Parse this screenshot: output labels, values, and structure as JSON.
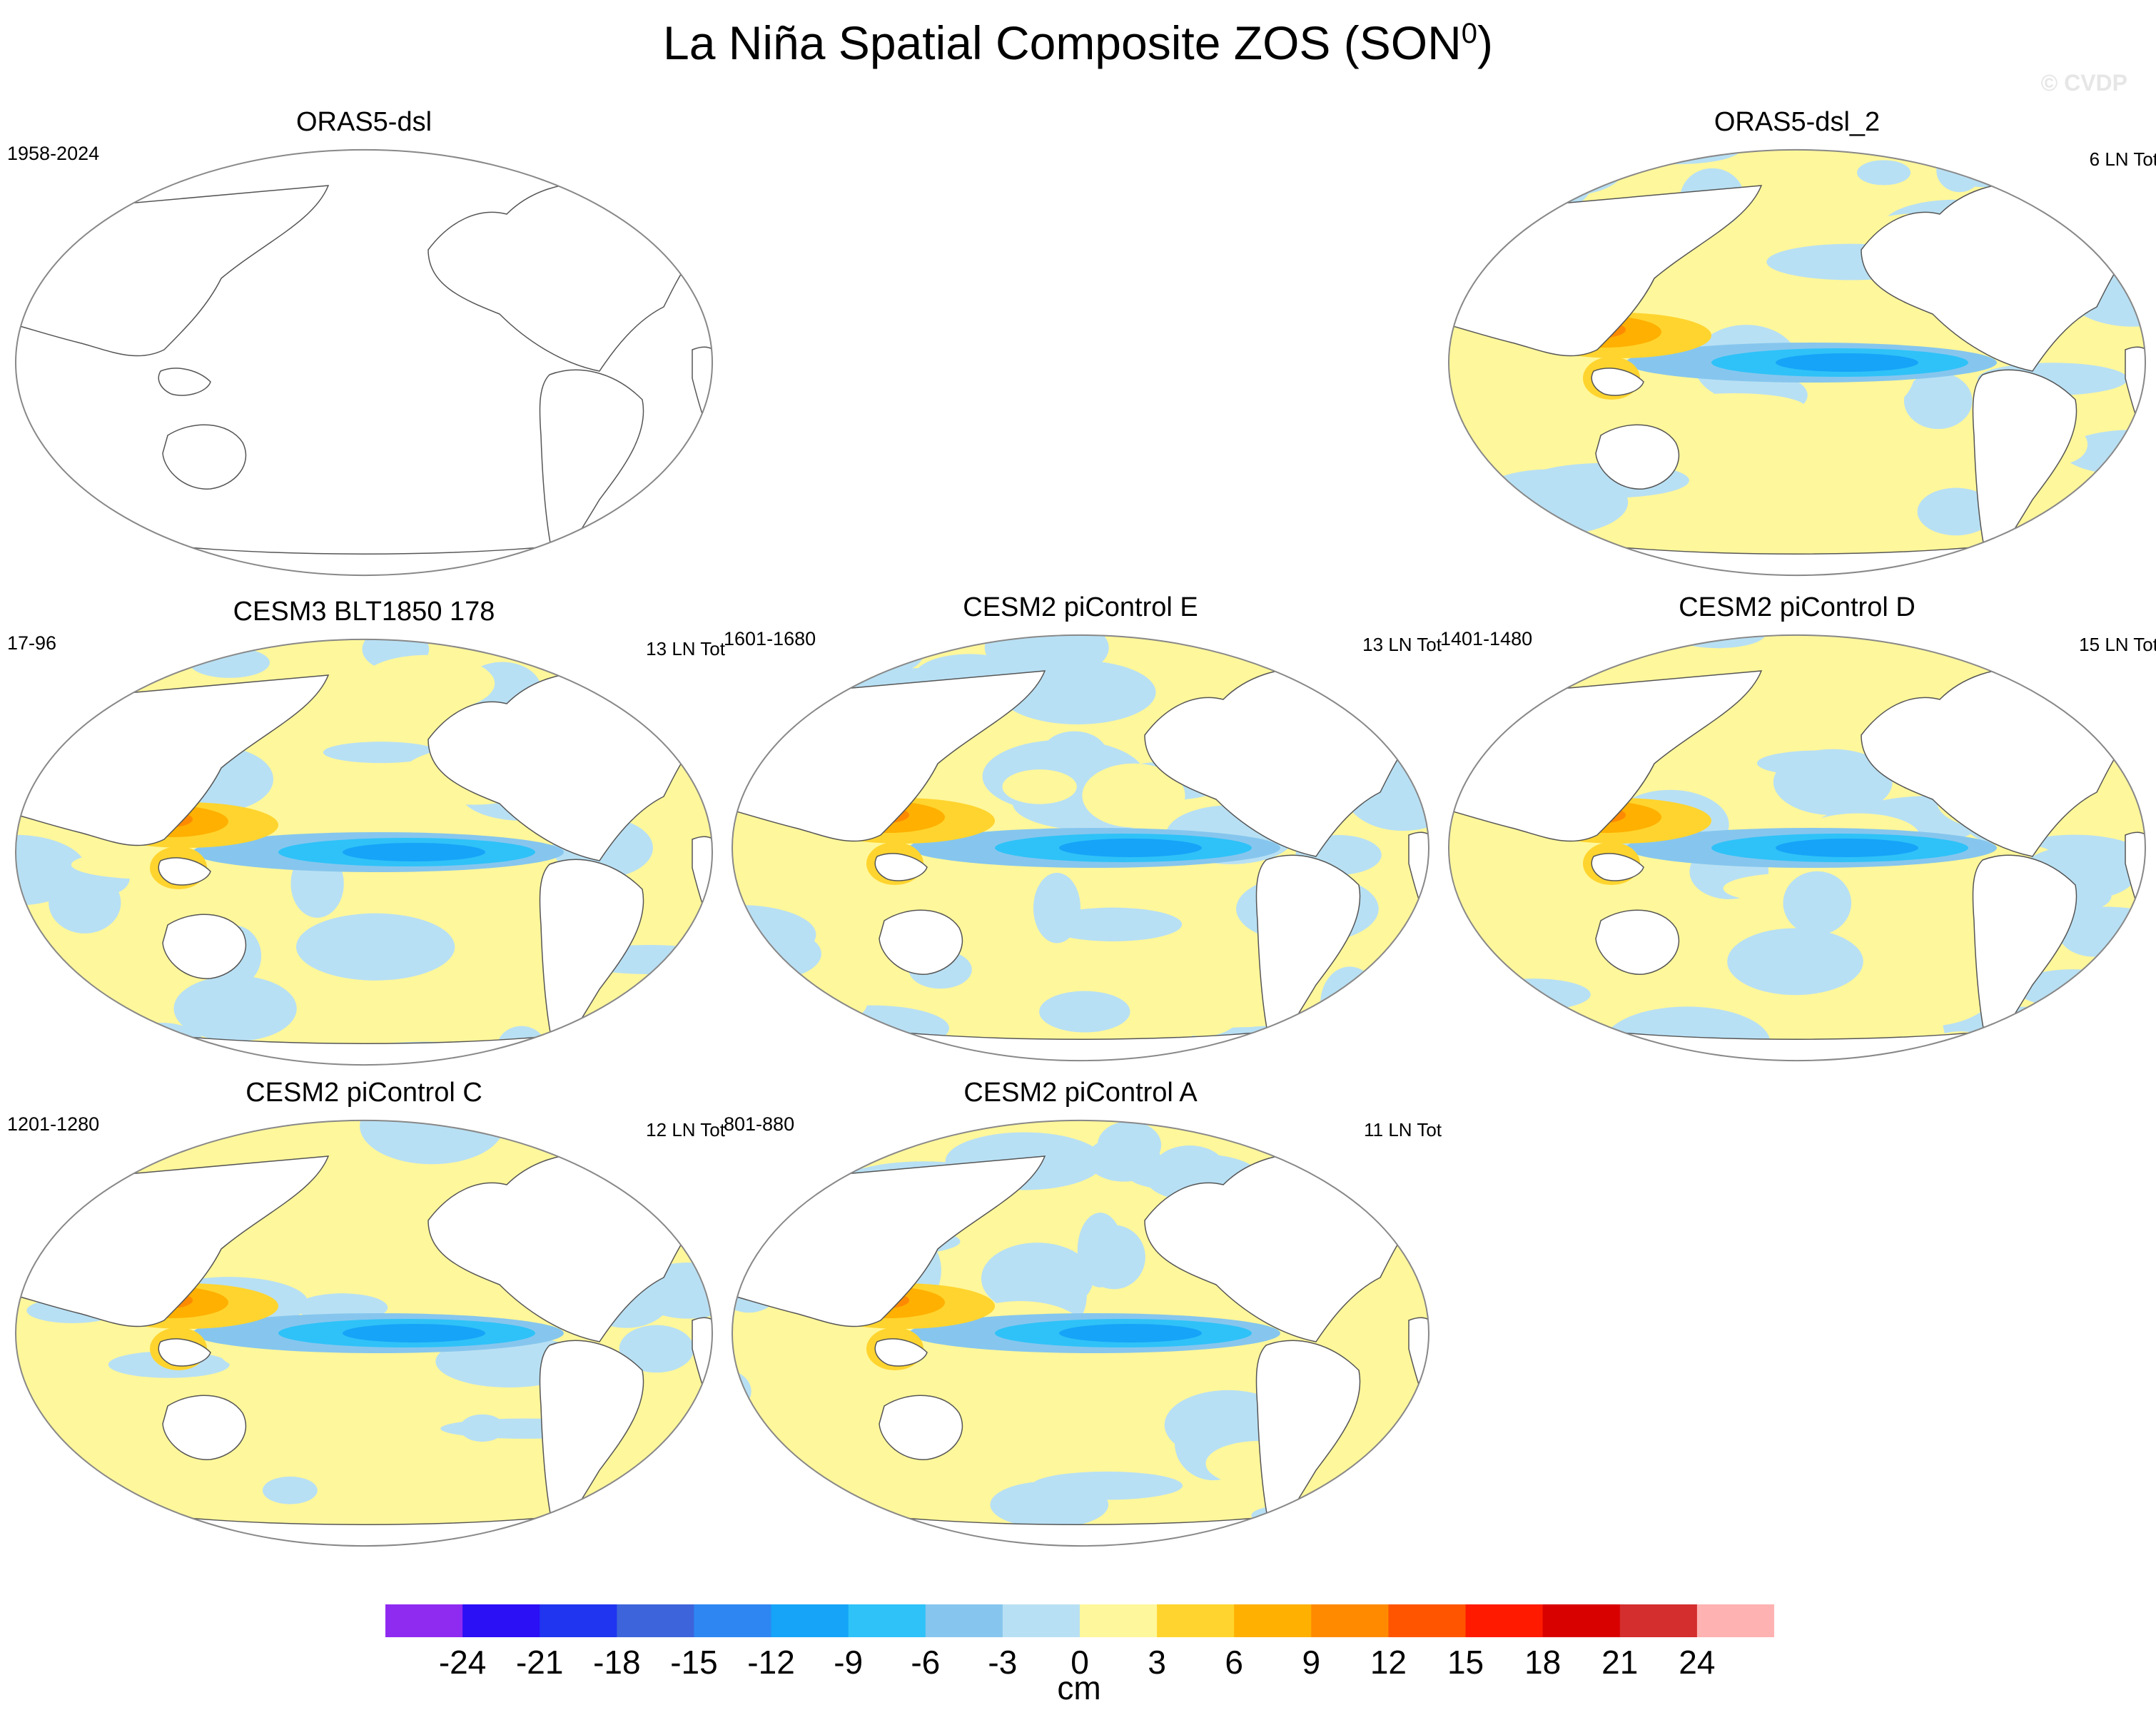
{
  "title": {
    "main": "La Niña Spatial Composite ZOS (SON",
    "superscript": "0",
    "close": ")"
  },
  "watermark": "© CVDP",
  "panels": [
    {
      "title": "ORAS5-dsl",
      "left_label": "1958-2024",
      "right_label": "",
      "filled": false,
      "seed": 1
    },
    {
      "title": "ORAS5-dsl_2",
      "left_label": "",
      "right_label": "6 LN Tot",
      "filled": true,
      "seed": 2
    },
    {
      "title": "CESM3 BLT1850 178",
      "left_label": "17-96",
      "right_label": "13 LN Tot",
      "filled": true,
      "seed": 3
    },
    {
      "title": "CESM2 piControl E",
      "left_label": "1601-1680",
      "right_label": "13 LN Tot",
      "filled": true,
      "seed": 4
    },
    {
      "title": "CESM2 piControl D",
      "left_label": "1401-1480",
      "right_label": "15 LN Tot",
      "filled": true,
      "seed": 5
    },
    {
      "title": "CESM2 piControl C",
      "left_label": "1201-1280",
      "right_label": "12 LN Tot",
      "filled": true,
      "seed": 6
    },
    {
      "title": "CESM2 piControl A",
      "left_label": "801-880",
      "right_label": "11 LN Tot",
      "filled": true,
      "seed": 7
    }
  ],
  "colorbar": {
    "labels": [
      "-24",
      "-21",
      "-18",
      "-15",
      "-12",
      "-9",
      "-6",
      "-3",
      "0",
      "3",
      "6",
      "9",
      "12",
      "15",
      "18",
      "21",
      "24"
    ],
    "units": "cm",
    "colors": [
      "#8f2bf0",
      "#2b0ff5",
      "#1f35f0",
      "#3d64db",
      "#2e86f3",
      "#15a4f8",
      "#2ec2f8",
      "#86c6ee",
      "#b8e0f4",
      "#fff79b",
      "#ffd42e",
      "#ffb000",
      "#ff8a00",
      "#ff5500",
      "#ff1a00",
      "#d90000",
      "#d42e2e",
      "#ffb2b2"
    ]
  }
}
